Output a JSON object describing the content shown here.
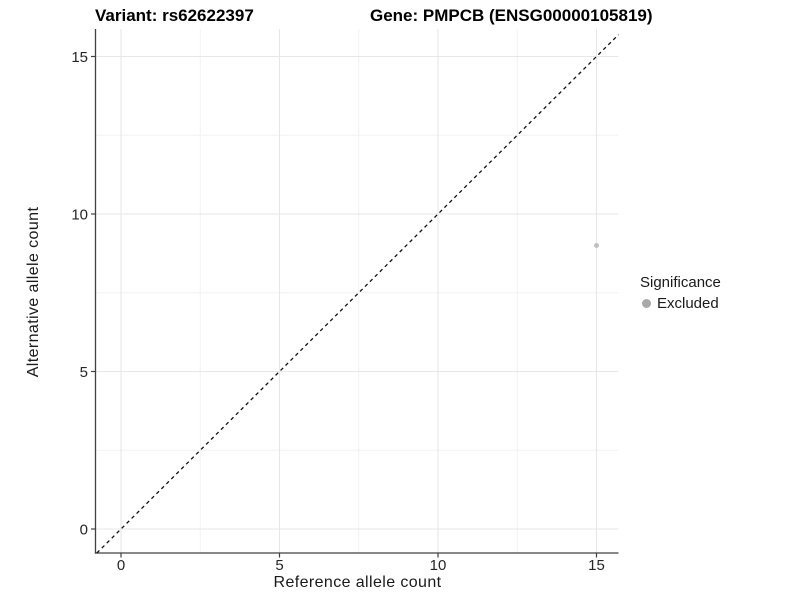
{
  "titles": {
    "variant": "Variant: rs62622397",
    "gene": "Gene: PMPCB (ENSG00000105819)"
  },
  "axes": {
    "x_label": "Reference allele count",
    "y_label": "Alternative allele count"
  },
  "legend": {
    "title": "Significance",
    "items": [
      {
        "label": "Excluded",
        "color": "#a8a8a8"
      }
    ]
  },
  "chart_data": {
    "type": "scatter",
    "title": "Variant: rs62622397   Gene: PMPCB (ENSG00000105819)",
    "xlabel": "Reference allele count",
    "ylabel": "Alternative allele count",
    "x_ticks": [
      0,
      5,
      10,
      15
    ],
    "y_ticks": [
      0,
      5,
      10,
      15
    ],
    "xlim": [
      -0.8,
      15.7
    ],
    "ylim": [
      -0.76,
      15.84
    ],
    "grid": "major+minor",
    "legend_position": "right",
    "series": [
      {
        "name": "Excluded",
        "color": "#c1c1c1",
        "points": [
          {
            "x": 15,
            "y": 9
          }
        ]
      }
    ],
    "reference_line": {
      "kind": "identity y=x",
      "style": "dashed",
      "color": "#111111"
    },
    "colors": {
      "grid_major": "#e7e7e7",
      "grid_minor": "#f2f2f2",
      "axis_line": "#404040",
      "tick_text": "#262626"
    }
  }
}
